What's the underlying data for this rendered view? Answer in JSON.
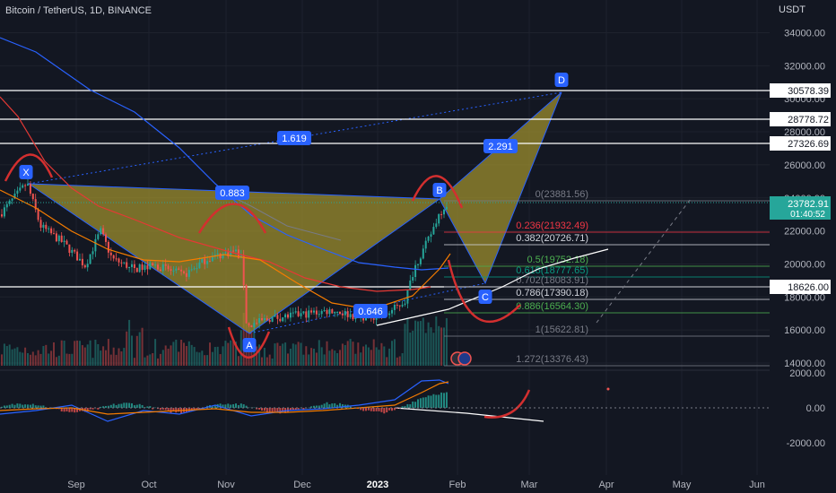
{
  "header": {
    "title": "Bitcoin / TetherUS, 1D, BINANCE",
    "currency": "USDT"
  },
  "colors": {
    "background": "#131722",
    "up": "#26a69a",
    "down": "#ef5350",
    "pattern_fill": "#9c8e2e",
    "label_blue": "#2962ff",
    "ma_blue": "#2962ff",
    "ma_red": "#e53935",
    "ma_orange": "#f57c00",
    "ma_gray": "#787b86",
    "macd_blue": "#2962ff",
    "macd_orange": "#f57c00"
  },
  "price_axis": {
    "ticks": [
      "34000.00",
      "32000.00",
      "30000.00",
      "28000.00",
      "26000.00",
      "24000.00",
      "22000.00",
      "20000.00",
      "18000.00",
      "16000.00",
      "14000.00"
    ],
    "current_price": "23782.91",
    "countdown": "01:40:52"
  },
  "time_axis": {
    "ticks": [
      "Sep",
      "Oct",
      "Nov",
      "Dec",
      "2023",
      "Feb",
      "Mar",
      "Apr",
      "May",
      "Jun"
    ]
  },
  "horizontal_levels": [
    "30578.39",
    "28778.72",
    "27326.69",
    "18626.00"
  ],
  "pattern": {
    "points": [
      "X",
      "A",
      "B",
      "C",
      "D"
    ],
    "ratios": [
      "0.883",
      "1.619",
      "2.291",
      "0.646"
    ]
  },
  "fib_levels": [
    {
      "label": "0(23881.56)",
      "color": "#787b86"
    },
    {
      "label": "0.236(21932.49)",
      "color": "#f23645"
    },
    {
      "label": "0.382(20726.71)",
      "color": "#d1d4dc"
    },
    {
      "label": "0.5(19752.18)",
      "color": "#4caf50"
    },
    {
      "label": "0.618(18777.65)",
      "color": "#089981"
    },
    {
      "label": "0.702(18083.91)",
      "color": "#787b86"
    },
    {
      "label": "0.786(17390.18)",
      "color": "#d1d4dc"
    },
    {
      "label": "0.886(16564.30)",
      "color": "#4caf50"
    },
    {
      "label": "1(15622.81)",
      "color": "#787b86"
    },
    {
      "label": "1.272(13376.43)",
      "color": "#787b86"
    }
  ],
  "indicator": {
    "ticks": [
      "2000.00",
      "0.00",
      "-2000.00"
    ]
  }
}
